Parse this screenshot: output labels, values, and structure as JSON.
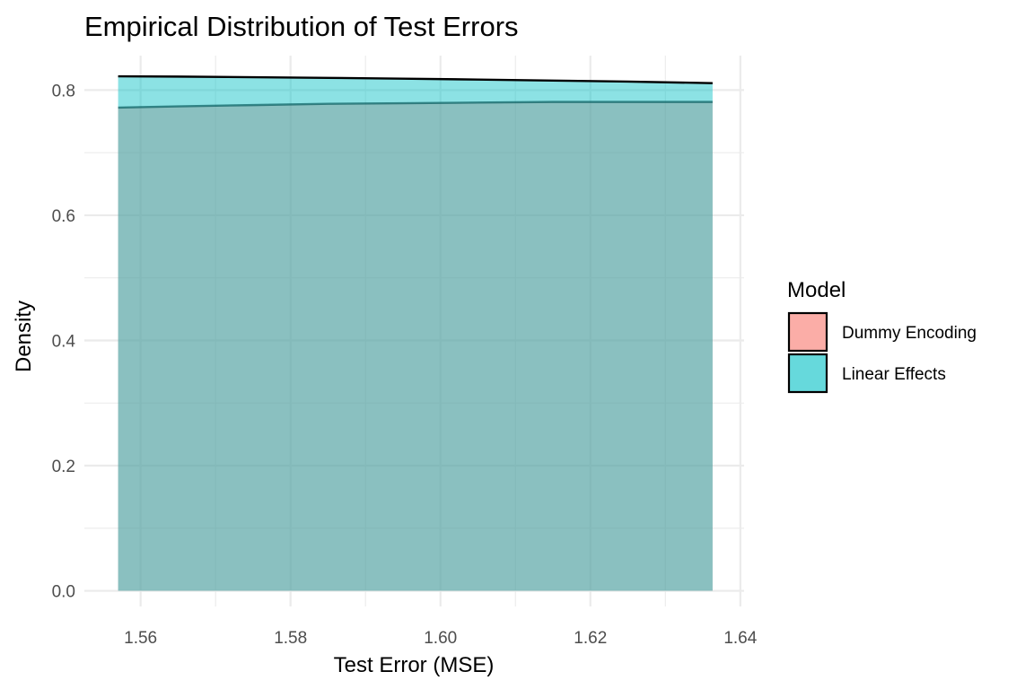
{
  "chart_data": {
    "type": "area",
    "title": "Empirical Distribution of Test Errors",
    "xlabel": "Test Error (MSE)",
    "ylabel": "Density",
    "xlim": [
      1.5525,
      1.6405
    ],
    "ylim": [
      -0.025,
      0.855
    ],
    "x_ticks": [
      1.56,
      1.58,
      1.6,
      1.62,
      1.64
    ],
    "x_tick_labels": [
      "1.56",
      "1.58",
      "1.60",
      "1.62",
      "1.64"
    ],
    "x_minor_ticks": [
      1.57,
      1.59,
      1.61,
      1.63
    ],
    "y_ticks": [
      0.0,
      0.2,
      0.4,
      0.6,
      0.8
    ],
    "y_tick_labels": [
      "0.0",
      "0.2",
      "0.4",
      "0.6",
      "0.8"
    ],
    "y_minor_ticks": [
      0.1,
      0.3,
      0.5,
      0.7
    ],
    "grid": true,
    "legend": {
      "title": "Model",
      "placement": "right",
      "entries": [
        "Dummy Encoding",
        "Linear Effects"
      ]
    },
    "series": [
      {
        "name": "Dummy Encoding",
        "color": "#F8766D",
        "x": [
          1.557,
          1.565,
          1.575,
          1.585,
          1.595,
          1.605,
          1.615,
          1.625,
          1.6363
        ],
        "y": [
          0.772,
          0.774,
          0.776,
          0.778,
          0.779,
          0.78,
          0.781,
          0.781,
          0.781
        ]
      },
      {
        "name": "Linear Effects",
        "color": "#00BFC4",
        "x": [
          1.557,
          1.565,
          1.575,
          1.585,
          1.595,
          1.605,
          1.615,
          1.625,
          1.6363
        ],
        "y": [
          0.822,
          0.8215,
          0.8205,
          0.8195,
          0.8182,
          0.8168,
          0.8152,
          0.8135,
          0.811
        ]
      }
    ]
  }
}
